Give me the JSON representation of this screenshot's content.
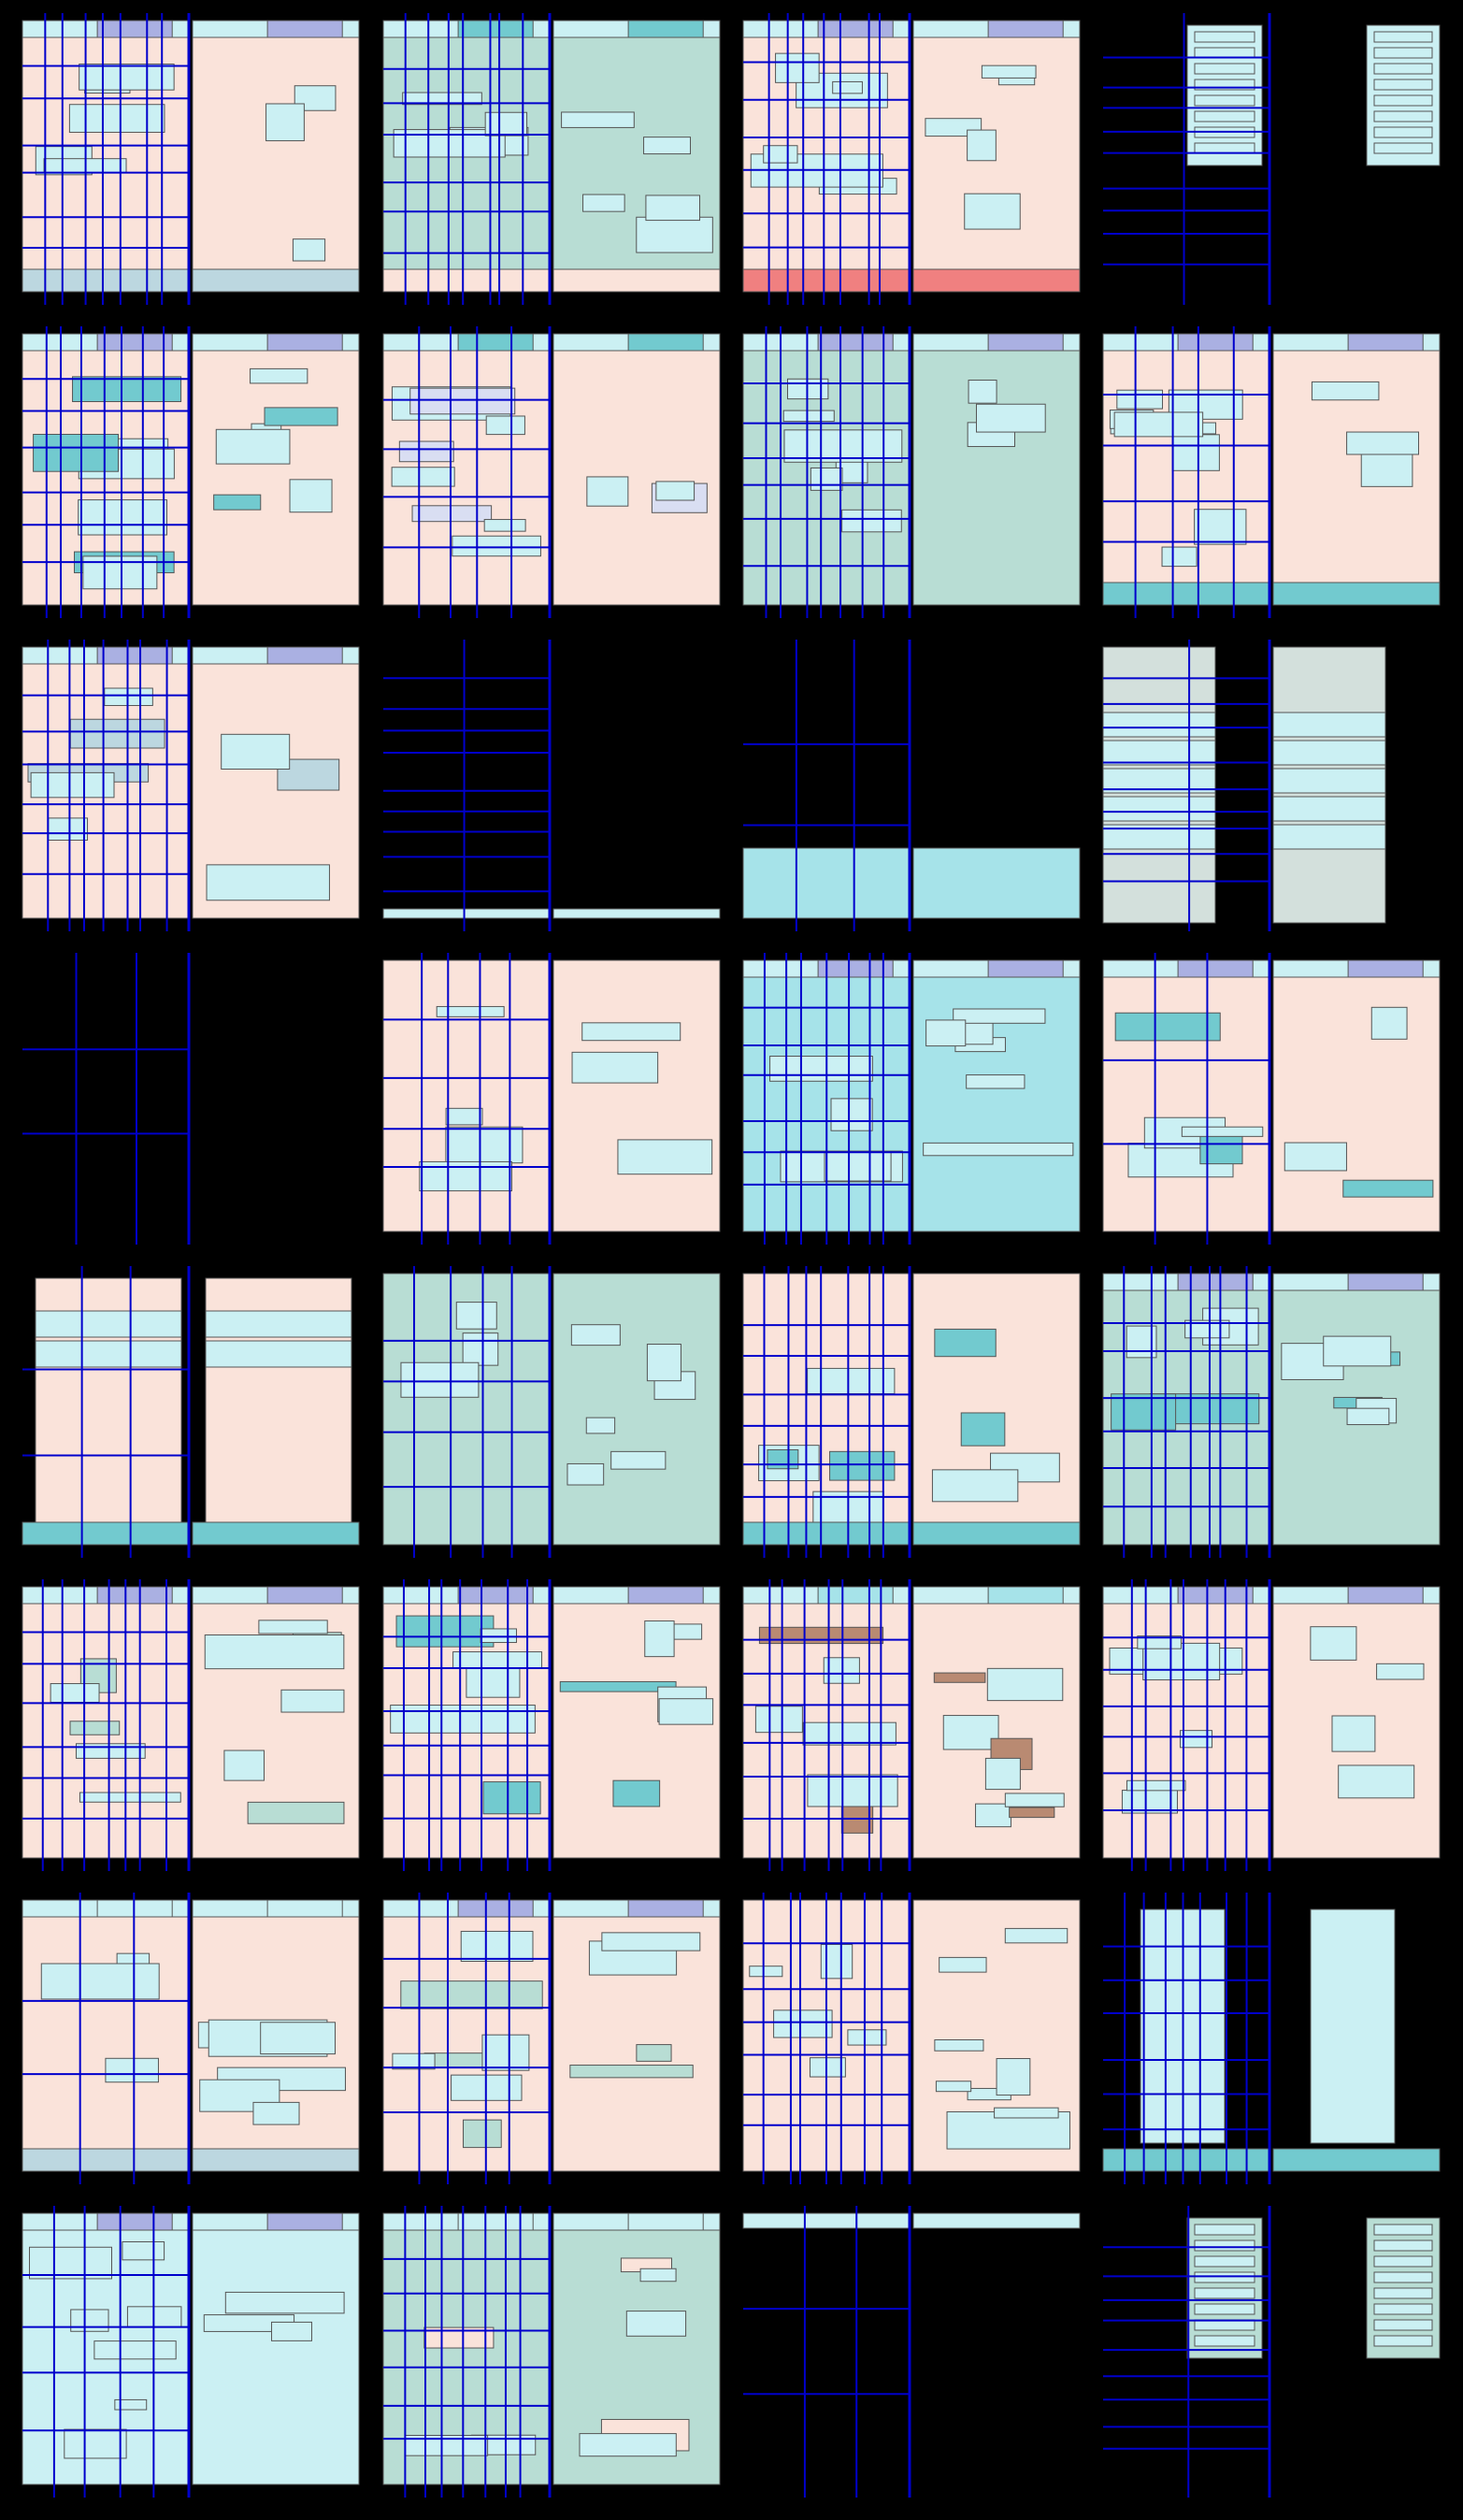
{
  "colors": {
    "background": "#000000",
    "peach": "#fae3da",
    "light_cyan": "#cbf0f3",
    "cyan": "#a6e3e9",
    "teal": "#72cacf",
    "mint": "#b8ddd4",
    "grey_mint": "#d3e0dc",
    "periwinkle": "#aab0e2",
    "lavender": "#d9def2",
    "steel": "#bcd7e0",
    "salmon": "#f08080",
    "brown": "#b98a72",
    "guide_line": "#0000cc",
    "outline": "#555555"
  },
  "grid": {
    "columns": 4,
    "rows": 8
  },
  "panels": [
    {
      "base": "peach",
      "top_bar": "periwinkle",
      "bottom_bar": "steel",
      "guides": "dense"
    },
    {
      "base": "mint",
      "top_bar": "teal",
      "bottom_bar": "peach",
      "guides": "dense"
    },
    {
      "base": "peach",
      "top_bar": "periwinkle",
      "bottom_bar": "salmon",
      "guides": "dense"
    },
    {
      "base": "light_cyan",
      "layout": "narrow-list",
      "guides": "horizontal"
    },
    {
      "base": "peach",
      "top_bar": "periwinkle",
      "accent": "teal",
      "guides": "dense"
    },
    {
      "base": "peach",
      "top_bar": "teal",
      "accent": "lavender",
      "guides": "medium"
    },
    {
      "base": "mint",
      "top_bar": "periwinkle",
      "guides": "dense"
    },
    {
      "base": "peach",
      "top_bar": "periwinkle",
      "bottom_bar": "teal",
      "guides": "medium"
    },
    {
      "base": "peach",
      "top_bar": "periwinkle",
      "accent": "steel",
      "guides": "dense"
    },
    {
      "base": "empty",
      "bottom_bar": "light_cyan",
      "guides": "horizontal"
    },
    {
      "base": "empty",
      "bottom_bar": "cyan",
      "guides": "sparse"
    },
    {
      "base": "grey_mint",
      "layout": "side-columns",
      "guides": "horizontal"
    },
    {
      "base": "empty",
      "layout": "thin-strip",
      "accent": "teal",
      "guides": "sparse"
    },
    {
      "base": "peach",
      "accent": "light_cyan",
      "guides": "medium"
    },
    {
      "base": "cyan",
      "top_bar": "periwinkle",
      "guides": "dense"
    },
    {
      "base": "peach",
      "top_bar": "periwinkle",
      "accent": "teal",
      "guides": "sparse"
    },
    {
      "base": "peach",
      "layout": "cards",
      "bottom_bar": "teal",
      "guides": "sparse"
    },
    {
      "base": "mint",
      "layout": "list",
      "guides": "medium"
    },
    {
      "base": "peach",
      "accent": "teal",
      "bottom_bar": "teal",
      "guides": "dense"
    },
    {
      "base": "mint",
      "top_bar": "periwinkle",
      "accent": "teal",
      "guides": "dense"
    },
    {
      "base": "peach",
      "top_bar": "periwinkle",
      "accent": "mint",
      "guides": "dense"
    },
    {
      "base": "peach",
      "top_bar": "periwinkle",
      "accent": "teal",
      "guides": "dense"
    },
    {
      "base": "peach",
      "top_bar": "cyan",
      "accent": "brown",
      "guides": "dense"
    },
    {
      "base": "peach",
      "top_bar": "periwinkle",
      "accent": "light_cyan",
      "guides": "dense"
    },
    {
      "base": "peach",
      "top_bar": "light_cyan",
      "bottom_bar": "steel",
      "guides": "sparse"
    },
    {
      "base": "peach",
      "top_bar": "periwinkle",
      "accent": "mint",
      "guides": "medium"
    },
    {
      "base": "peach",
      "layout": "list-left",
      "guides": "dense"
    },
    {
      "base": "light_cyan",
      "layout": "tall-center",
      "bottom_bar": "teal",
      "guides": "dense"
    },
    {
      "base": "light_cyan",
      "top_bar": "periwinkle",
      "layout": "list",
      "guides": "medium"
    },
    {
      "base": "mint",
      "top_bar": "light_cyan",
      "accent": "peach",
      "guides": "dense"
    },
    {
      "base": "empty",
      "top_bar": "light_cyan",
      "guides": "sparse"
    },
    {
      "base": "mint",
      "layout": "narrow-list",
      "guides": "horizontal"
    }
  ]
}
